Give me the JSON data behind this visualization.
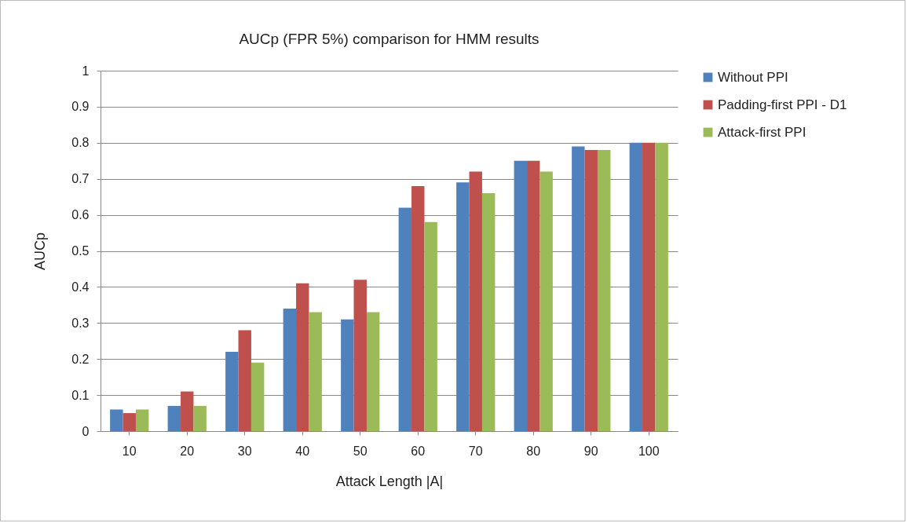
{
  "chart_data": {
    "type": "bar",
    "title": "AUCp (FPR 5%) comparison for HMM results",
    "xlabel": "Attack Length |A|",
    "ylabel": "AUCp",
    "categories": [
      "10",
      "20",
      "30",
      "40",
      "50",
      "60",
      "70",
      "80",
      "90",
      "100"
    ],
    "series": [
      {
        "name": "Without PPI",
        "color": "#4f81bd",
        "values": [
          0.06,
          0.07,
          0.22,
          0.34,
          0.31,
          0.62,
          0.69,
          0.75,
          0.79,
          0.8
        ]
      },
      {
        "name": "Padding-first PPI - D1",
        "color": "#c0504d",
        "values": [
          0.05,
          0.11,
          0.28,
          0.41,
          0.42,
          0.68,
          0.72,
          0.75,
          0.78,
          0.8
        ]
      },
      {
        "name": "Attack-first PPI",
        "color": "#9bbb59",
        "values": [
          0.06,
          0.07,
          0.19,
          0.33,
          0.33,
          0.58,
          0.66,
          0.72,
          0.78,
          0.8
        ]
      }
    ],
    "ylim": [
      0,
      1
    ],
    "yticks": [
      0,
      0.1,
      0.2,
      0.3,
      0.4,
      0.5,
      0.6,
      0.7,
      0.8,
      0.9,
      1
    ],
    "grid": "y",
    "legend": "right"
  }
}
